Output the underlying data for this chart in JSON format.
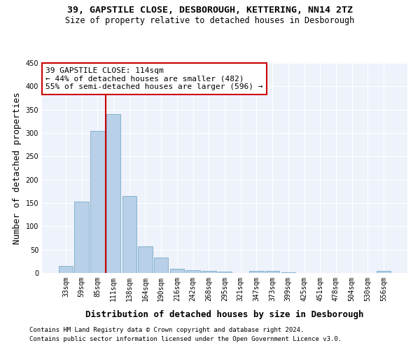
{
  "title1": "39, GAPSTILE CLOSE, DESBOROUGH, KETTERING, NN14 2TZ",
  "title2": "Size of property relative to detached houses in Desborough",
  "xlabel": "Distribution of detached houses by size in Desborough",
  "ylabel": "Number of detached properties",
  "footer1": "Contains HM Land Registry data © Crown copyright and database right 2024.",
  "footer2": "Contains public sector information licensed under the Open Government Licence v3.0.",
  "bin_labels": [
    "33sqm",
    "59sqm",
    "85sqm",
    "111sqm",
    "138sqm",
    "164sqm",
    "190sqm",
    "216sqm",
    "242sqm",
    "268sqm",
    "295sqm",
    "321sqm",
    "347sqm",
    "373sqm",
    "399sqm",
    "425sqm",
    "451sqm",
    "478sqm",
    "504sqm",
    "530sqm",
    "556sqm"
  ],
  "bar_values": [
    15,
    153,
    305,
    340,
    165,
    57,
    33,
    9,
    6,
    4,
    3,
    0,
    5,
    5,
    1,
    0,
    0,
    0,
    0,
    0,
    4
  ],
  "bar_color": "#b8d0e8",
  "bar_edgecolor": "#7aaac8",
  "property_line_x": 2.5,
  "property_line_color": "#cc0000",
  "ann_line1": "39 GAPSTILE CLOSE: 114sqm",
  "ann_line2": "← 44% of detached houses are smaller (482)",
  "ann_line3": "55% of semi-detached houses are larger (596) →",
  "annotation_box_color": "#ffffff",
  "annotation_box_edgecolor": "#cc0000",
  "ylim": [
    0,
    450
  ],
  "yticks": [
    0,
    50,
    100,
    150,
    200,
    250,
    300,
    350,
    400,
    450
  ],
  "background_color": "#eef2fb",
  "grid_color": "#ffffff",
  "title_fontsize": 9.5,
  "subtitle_fontsize": 8.5,
  "axis_label_fontsize": 9,
  "tick_fontsize": 7,
  "footer_fontsize": 6.5,
  "ann_fontsize": 8
}
